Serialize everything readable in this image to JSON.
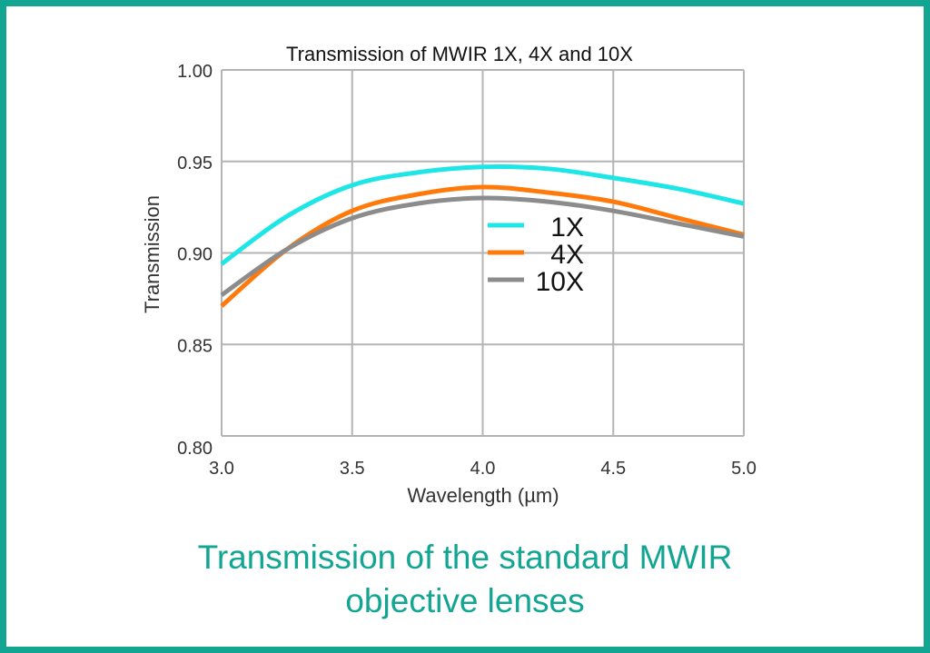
{
  "chart_data": {
    "type": "line",
    "title": "Transmission of MWIR 1X, 4X and 10X",
    "xlabel": "Wavelength (µm)",
    "ylabel": "Transmission",
    "xlim": [
      3.0,
      5.0
    ],
    "ylim": [
      0.8,
      1.0
    ],
    "xticks": [
      "3.0",
      "3.5",
      "4.0",
      "4.5",
      "5.0"
    ],
    "yticks": [
      "0.80",
      "0.85",
      "0.90",
      "0.95",
      "1.00"
    ],
    "grid": true,
    "legend_position": "center",
    "x": [
      3.0,
      3.25,
      3.5,
      3.75,
      4.0,
      4.25,
      4.5,
      4.75,
      5.0
    ],
    "series": [
      {
        "name": "1X",
        "color": "#1fe6e6",
        "values": [
          0.894,
          0.92,
          0.937,
          0.944,
          0.947,
          0.946,
          0.941,
          0.935,
          0.927
        ]
      },
      {
        "name": "4X",
        "color": "#ff7a0a",
        "values": [
          0.871,
          0.902,
          0.923,
          0.932,
          0.936,
          0.933,
          0.928,
          0.919,
          0.91
        ]
      },
      {
        "name": "10X",
        "color": "#8c8c8c",
        "values": [
          0.877,
          0.902,
          0.919,
          0.927,
          0.93,
          0.928,
          0.923,
          0.916,
          0.909
        ]
      }
    ]
  },
  "caption": {
    "line1": "Transmission of the standard MWIR",
    "line2": "objective lenses"
  },
  "colors": {
    "frame": "#12a592",
    "grid": "#b4b4b4"
  }
}
